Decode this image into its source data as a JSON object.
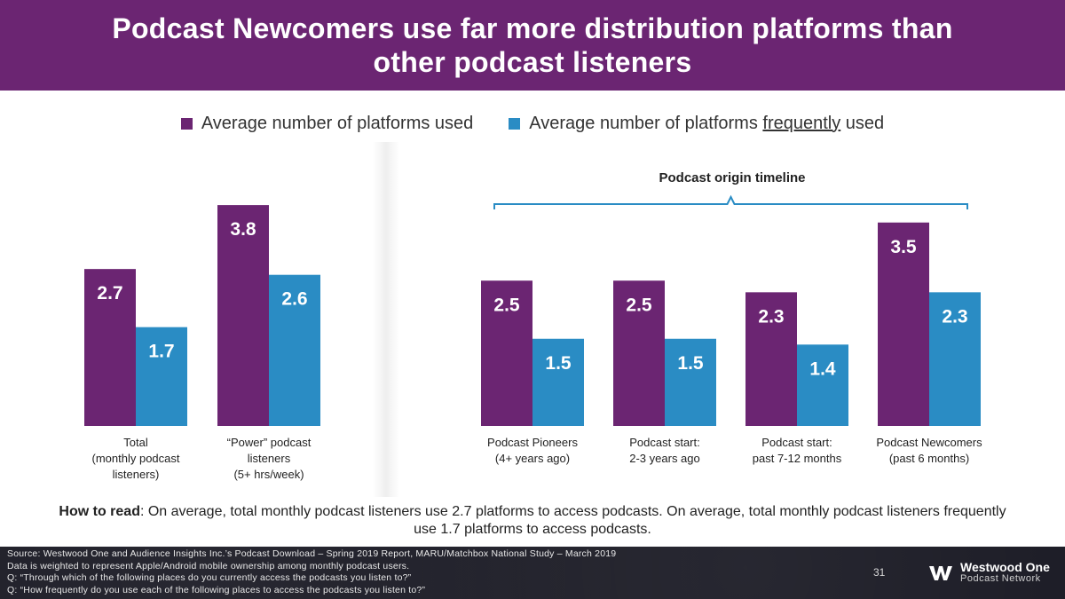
{
  "title": "Podcast Newcomers use far more distribution platforms than other podcast listeners",
  "legend": {
    "used": "Average number of platforms used",
    "frequently_prefix": "Average number of platforms ",
    "frequently_underlined": "frequently",
    "frequently_suffix": " used"
  },
  "timeline_label": "Podcast origin timeline",
  "colors": {
    "title_bg": "#6b2572",
    "used": "#6b2572",
    "frequently": "#2a8cc4",
    "brace": "#2a8cc4"
  },
  "chart_data": {
    "type": "bar",
    "series": [
      {
        "name": "Average number of platforms used",
        "values": [
          2.7,
          3.8,
          2.5,
          2.5,
          2.3,
          3.5
        ]
      },
      {
        "name": "Average number of platforms frequently used",
        "values": [
          1.7,
          2.6,
          1.5,
          1.5,
          1.4,
          2.3
        ]
      }
    ],
    "categories": [
      [
        "Total",
        "(monthly podcast",
        "listeners)"
      ],
      [
        "“Power” podcast",
        "listeners",
        "(5+ hrs/week)"
      ],
      [
        "Podcast Pioneers",
        "(4+ years ago)"
      ],
      [
        "Podcast start:",
        "2-3 years ago"
      ],
      [
        "Podcast start:",
        "past 7-12 months"
      ],
      [
        "Podcast Newcomers",
        "(past 6 months)"
      ]
    ],
    "value_labels": [
      [
        "2.7",
        "3.8",
        "2.5",
        "2.5",
        "2.3",
        "3.5"
      ],
      [
        "1.7",
        "2.6",
        "1.5",
        "1.5",
        "1.4",
        "2.3"
      ]
    ]
  },
  "how_to_read": {
    "label": "How to read",
    "text": ": On average, total monthly podcast listeners use 2.7 platforms to access podcasts. On average, total monthly podcast listeners frequently use 1.7 platforms to access podcasts."
  },
  "footer": {
    "source_lines": [
      "Source: Westwood One and Audience Insights Inc.’s Podcast Download – Spring 2019 Report, MARU/Matchbox National Study – March 2019",
      "Data is weighted to represent Apple/Android mobile ownership among monthly podcast users.",
      "Q: “Through which of the following places do you currently access the podcasts you listen to?”",
      "Q: “How frequently do you use each of the following places to access the podcasts you listen to?”"
    ],
    "page_number": "31",
    "logo_line1": "Westwood One",
    "logo_line2": "Podcast Network"
  }
}
